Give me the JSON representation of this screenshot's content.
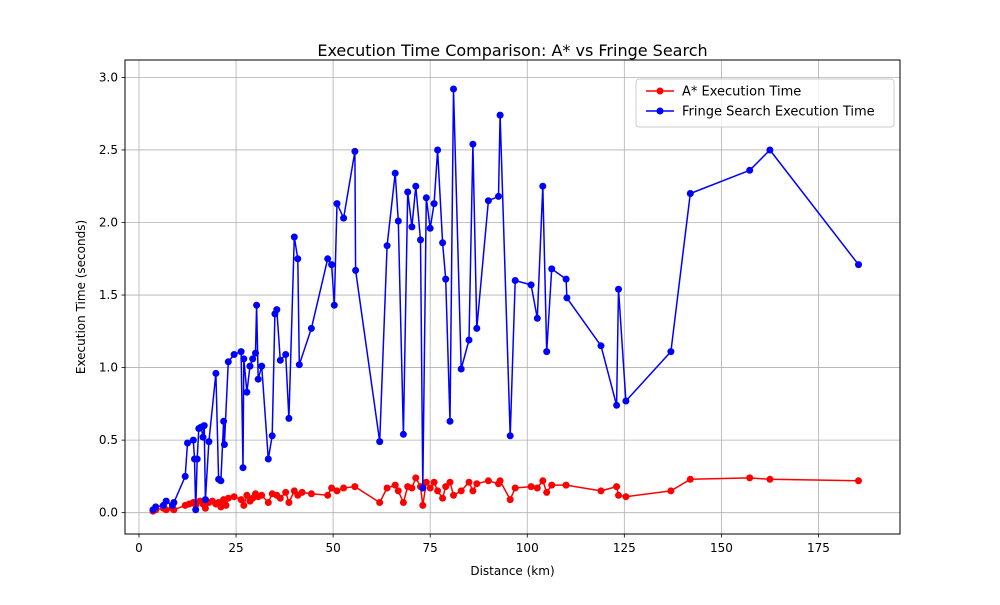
{
  "chart_data": {
    "type": "line",
    "title": "Execution Time Comparison: A* vs Fringe Search",
    "xlabel": "Distance (km)",
    "ylabel": "Execution Time (seconds)",
    "xlim": [
      -3.6,
      196
    ],
    "ylim": [
      -0.147,
      3.12
    ],
    "x_ticks": [
      0,
      25,
      50,
      75,
      100,
      125,
      150,
      175
    ],
    "y_ticks": [
      0.0,
      0.5,
      1.0,
      1.5,
      2.0,
      2.5,
      3.0
    ],
    "x_tick_labels": [
      "0",
      "25",
      "50",
      "75",
      "100",
      "125",
      "150",
      "175"
    ],
    "y_tick_labels": [
      "0.0",
      "0.5",
      "1.0",
      "1.5",
      "2.0",
      "2.5",
      "3.0"
    ],
    "grid": true,
    "legend_position": "top-right",
    "series": [
      {
        "name": "A* Execution Time",
        "color": "#ff0000",
        "x": [
          3.6,
          4.3,
          6.3,
          7.0,
          8.6,
          9.0,
          11.9,
          12.9,
          14.0,
          14.6,
          15.7,
          16.5,
          17.1,
          18.0,
          18.9,
          19.8,
          20.5,
          21.1,
          21.8,
          22.4,
          23.0,
          24.5,
          26.3,
          27.0,
          27.8,
          28.6,
          29.3,
          30.0,
          30.7,
          31.6,
          33.3,
          34.3,
          35.5,
          36.4,
          37.8,
          38.6,
          40.0,
          40.9,
          42.0,
          44.4,
          48.6,
          49.6,
          51.0,
          52.7,
          55.6,
          62.0,
          63.9,
          66.0,
          66.8,
          68.1,
          69.2,
          70.3,
          71.3,
          72.5,
          73.1,
          74.0,
          75.0,
          76.0,
          76.9,
          78.2,
          79.0,
          80.1,
          81.0,
          83.0,
          85.0,
          86.0,
          87.0,
          90.0,
          92.6,
          93.0,
          95.6,
          96.9,
          101.0,
          102.6,
          104.0,
          105.0,
          106.3,
          110.0,
          119.0,
          123.0,
          123.5,
          125.4,
          137.0,
          142.0,
          157.3,
          162.5,
          185.3
        ],
        "y": [
          0.01,
          0.02,
          0.03,
          0.02,
          0.03,
          0.02,
          0.05,
          0.06,
          0.07,
          0.05,
          0.08,
          0.06,
          0.03,
          0.07,
          0.08,
          0.06,
          0.07,
          0.04,
          0.09,
          0.05,
          0.1,
          0.11,
          0.09,
          0.05,
          0.12,
          0.08,
          0.1,
          0.13,
          0.11,
          0.12,
          0.07,
          0.13,
          0.12,
          0.1,
          0.14,
          0.07,
          0.15,
          0.12,
          0.14,
          0.13,
          0.12,
          0.17,
          0.15,
          0.17,
          0.18,
          0.07,
          0.17,
          0.19,
          0.15,
          0.07,
          0.18,
          0.17,
          0.24,
          0.18,
          0.05,
          0.21,
          0.17,
          0.21,
          0.15,
          0.1,
          0.18,
          0.21,
          0.12,
          0.15,
          0.21,
          0.15,
          0.2,
          0.22,
          0.2,
          0.22,
          0.09,
          0.17,
          0.18,
          0.17,
          0.22,
          0.14,
          0.19,
          0.19,
          0.15,
          0.18,
          0.12,
          0.11,
          0.15,
          0.23,
          0.24,
          0.23,
          0.22
        ]
      },
      {
        "name": "Fringe Search Execution Time",
        "color": "#0000ff",
        "x": [
          3.6,
          4.3,
          6.3,
          7.0,
          8.6,
          9.0,
          11.9,
          12.5,
          14.0,
          14.3,
          14.6,
          15.0,
          15.4,
          16.0,
          16.5,
          16.8,
          17.1,
          18.0,
          19.8,
          20.5,
          21.1,
          21.8,
          22.0,
          23.0,
          24.5,
          26.3,
          26.8,
          27.0,
          27.8,
          28.6,
          29.3,
          30.0,
          30.3,
          30.7,
          31.6,
          33.3,
          34.3,
          35.0,
          35.5,
          36.4,
          37.8,
          38.6,
          40.0,
          40.9,
          41.3,
          44.4,
          48.6,
          49.6,
          50.3,
          51.0,
          52.7,
          55.6,
          55.8,
          62.0,
          63.9,
          66.0,
          66.8,
          68.1,
          69.2,
          70.3,
          71.3,
          72.5,
          73.1,
          74.0,
          75.0,
          76.0,
          76.9,
          78.2,
          79.0,
          80.1,
          81.0,
          83.0,
          85.0,
          86.0,
          87.0,
          90.0,
          92.6,
          93.0,
          95.6,
          96.9,
          101.0,
          102.6,
          104.0,
          105.0,
          106.3,
          110.0,
          110.2,
          119.0,
          123.0,
          123.5,
          125.4,
          137.0,
          142.0,
          157.3,
          162.5,
          185.3
        ],
        "y": [
          0.02,
          0.04,
          0.05,
          0.08,
          0.05,
          0.07,
          0.25,
          0.48,
          0.5,
          0.37,
          0.02,
          0.37,
          0.58,
          0.59,
          0.52,
          0.6,
          0.09,
          0.49,
          0.96,
          0.23,
          0.22,
          0.63,
          0.47,
          1.04,
          1.09,
          1.11,
          0.31,
          1.06,
          0.83,
          1.01,
          1.06,
          1.1,
          1.43,
          0.92,
          1.01,
          0.37,
          0.53,
          1.37,
          1.4,
          1.05,
          1.09,
          0.65,
          1.9,
          1.75,
          1.02,
          1.27,
          1.75,
          1.71,
          1.43,
          2.13,
          2.03,
          2.49,
          1.67,
          0.49,
          1.84,
          2.34,
          2.01,
          0.54,
          2.21,
          1.97,
          2.25,
          1.88,
          0.17,
          2.17,
          1.96,
          2.13,
          2.5,
          1.86,
          1.61,
          0.63,
          2.92,
          0.99,
          1.19,
          2.54,
          1.27,
          2.15,
          2.18,
          2.74,
          0.53,
          1.6,
          1.57,
          1.34,
          2.25,
          1.11,
          1.68,
          1.61,
          1.48,
          1.15,
          0.74,
          1.54,
          0.77,
          1.11,
          2.2,
          2.36,
          2.5,
          1.71
        ]
      }
    ]
  }
}
